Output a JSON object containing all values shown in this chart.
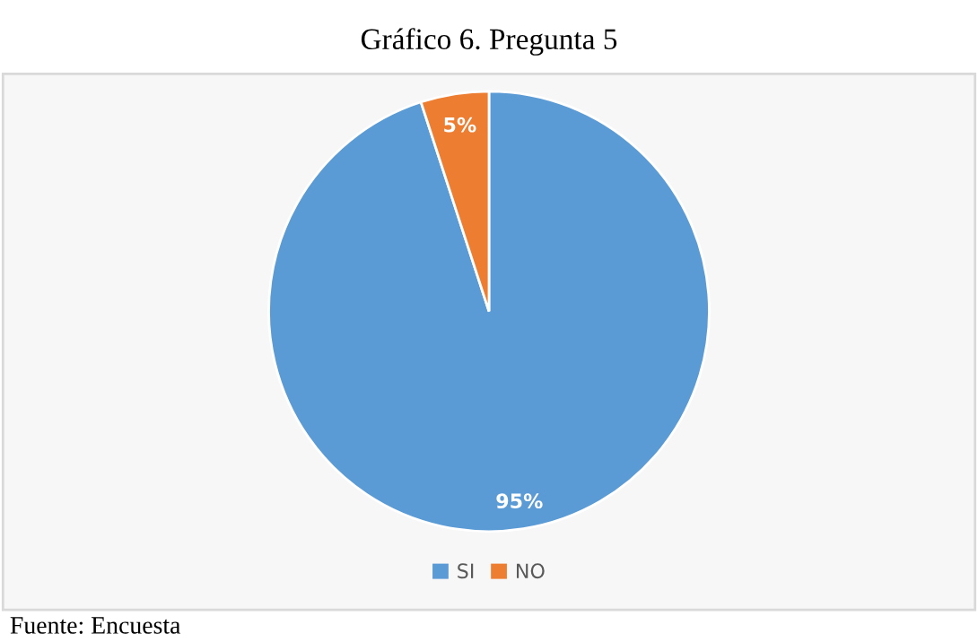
{
  "chart_data": {
    "type": "pie",
    "title": "Gráfico 6. Pregunta 5",
    "categories": [
      "SI",
      "NO"
    ],
    "values": [
      95,
      5
    ],
    "colors": [
      "#5b9bd5",
      "#ed7d31"
    ],
    "value_labels": [
      "95%",
      "5%"
    ],
    "legend": "bottom",
    "annotations": [
      "Fuente: Encuesta"
    ]
  }
}
